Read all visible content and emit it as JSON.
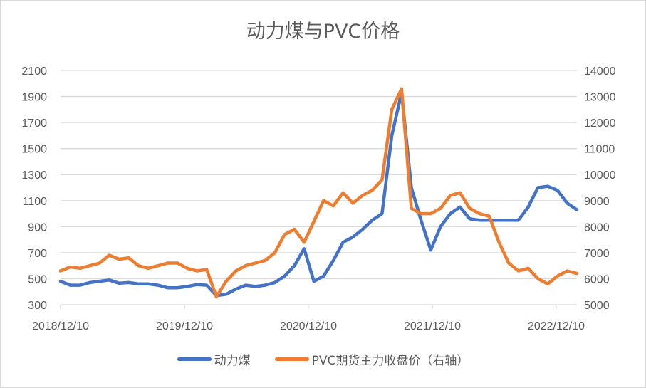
{
  "chart_data": {
    "type": "line",
    "title": "动力煤与PVC价格",
    "xlabel": "",
    "ylabel": "",
    "y_left": {
      "ticks": [
        300,
        500,
        700,
        900,
        1100,
        1300,
        1500,
        1700,
        1900,
        2100
      ],
      "ylim": [
        300,
        2100
      ]
    },
    "y_right": {
      "ticks": [
        5000,
        6000,
        7000,
        8000,
        9000,
        10000,
        11000,
        12000,
        13000,
        14000
      ],
      "ylim": [
        5000,
        14000
      ]
    },
    "x_ticks": [
      "2018/12/10",
      "2019/12/10",
      "2020/12/10",
      "2021/12/10",
      "2022/12/10"
    ],
    "grid": true,
    "legend_position": "bottom",
    "x": [
      "2018-12",
      "2019-01",
      "2019-02",
      "2019-03",
      "2019-04",
      "2019-05",
      "2019-06",
      "2019-07",
      "2019-08",
      "2019-09",
      "2019-10",
      "2019-11",
      "2019-12",
      "2020-01",
      "2020-02",
      "2020-03",
      "2020-04",
      "2020-05",
      "2020-06",
      "2020-07",
      "2020-08",
      "2020-09",
      "2020-10",
      "2020-11",
      "2020-12",
      "2021-01",
      "2021-02",
      "2021-03",
      "2021-04",
      "2021-05",
      "2021-06",
      "2021-07",
      "2021-08",
      "2021-09",
      "2021-10-early",
      "2021-10-mid",
      "2021-10-late",
      "2021-11",
      "2021-12",
      "2022-01",
      "2022-02",
      "2022-03",
      "2022-04",
      "2022-05",
      "2022-06",
      "2022-07",
      "2022-08",
      "2022-09",
      "2022-10",
      "2022-11",
      "2022-12",
      "2023-01",
      "2023-02",
      "2023-03"
    ],
    "series": [
      {
        "name": "动力煤",
        "axis": "left",
        "color": "#4472C4",
        "values": [
          480,
          450,
          450,
          470,
          480,
          490,
          465,
          470,
          460,
          460,
          450,
          430,
          430,
          440,
          455,
          450,
          370,
          380,
          420,
          450,
          440,
          450,
          470,
          520,
          600,
          730,
          480,
          520,
          640,
          780,
          820,
          880,
          950,
          1000,
          1600,
          1930,
          1200,
          950,
          720,
          900,
          1000,
          1050,
          960,
          950,
          950,
          950,
          950,
          950,
          1050,
          1200,
          1210,
          1180,
          1080,
          1030
        ]
      },
      {
        "name": "PVC期货主力收盘价（右轴）",
        "axis": "right",
        "color": "#ED7D31",
        "values": [
          6300,
          6450,
          6400,
          6500,
          6600,
          6900,
          6750,
          6800,
          6500,
          6400,
          6500,
          6600,
          6600,
          6400,
          6300,
          6350,
          5300,
          5900,
          6300,
          6500,
          6600,
          6700,
          7000,
          7700,
          7900,
          7400,
          8200,
          9000,
          8800,
          9300,
          8900,
          9200,
          9400,
          9800,
          12500,
          13300,
          8700,
          8500,
          8500,
          8700,
          9200,
          9300,
          8700,
          8500,
          8400,
          7400,
          6600,
          6300,
          6400,
          6000,
          5800,
          6100,
          6300,
          6200
        ]
      }
    ]
  },
  "legend": {
    "items": [
      {
        "label": "动力煤",
        "color": "#4472C4"
      },
      {
        "label": "PVC期货主力收盘价（右轴）",
        "color": "#ED7D31"
      }
    ]
  }
}
